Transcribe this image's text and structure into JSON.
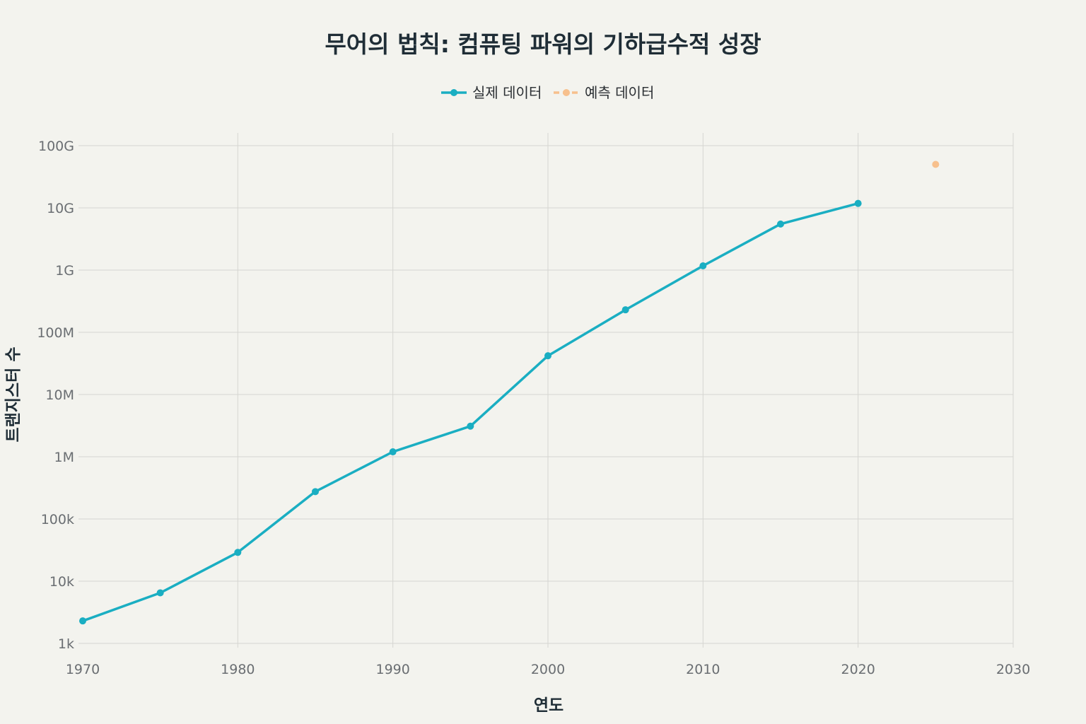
{
  "chart_data": {
    "type": "line",
    "title": "무어의 법칙: 컴퓨팅 파워의 기하급수적 성장",
    "xlabel": "연도",
    "ylabel": "트랜지스터 수",
    "yscale": "log",
    "xlim": [
      1970,
      2030
    ],
    "ylim": [
      1000,
      100000000000
    ],
    "x_ticks": [
      1970,
      1980,
      1990,
      2000,
      2010,
      2020,
      2030
    ],
    "y_ticks": [
      {
        "value": 1000,
        "label": "1k"
      },
      {
        "value": 10000,
        "label": "10k"
      },
      {
        "value": 100000,
        "label": "100k"
      },
      {
        "value": 1000000,
        "label": "1M"
      },
      {
        "value": 10000000,
        "label": "10M"
      },
      {
        "value": 100000000,
        "label": "100M"
      },
      {
        "value": 1000000000,
        "label": "1G"
      },
      {
        "value": 10000000000,
        "label": "10G"
      },
      {
        "value": 100000000000,
        "label": "100G"
      }
    ],
    "grid": true,
    "legend_position": "top-center",
    "series": [
      {
        "name": "실제 데이터",
        "color": "#1aaec2",
        "style": "solid",
        "x": [
          1970,
          1975,
          1980,
          1985,
          1990,
          1995,
          2000,
          2005,
          2010,
          2015,
          2020
        ],
        "y": [
          2300,
          6500,
          29000,
          275000,
          1200000,
          3100000,
          42000000,
          230000000,
          1170000000,
          5500000000,
          11800000000
        ]
      },
      {
        "name": "예측 데이터",
        "color": "#f7c08d",
        "style": "dashed",
        "x": [
          2025
        ],
        "y": [
          50000000000
        ]
      }
    ]
  }
}
